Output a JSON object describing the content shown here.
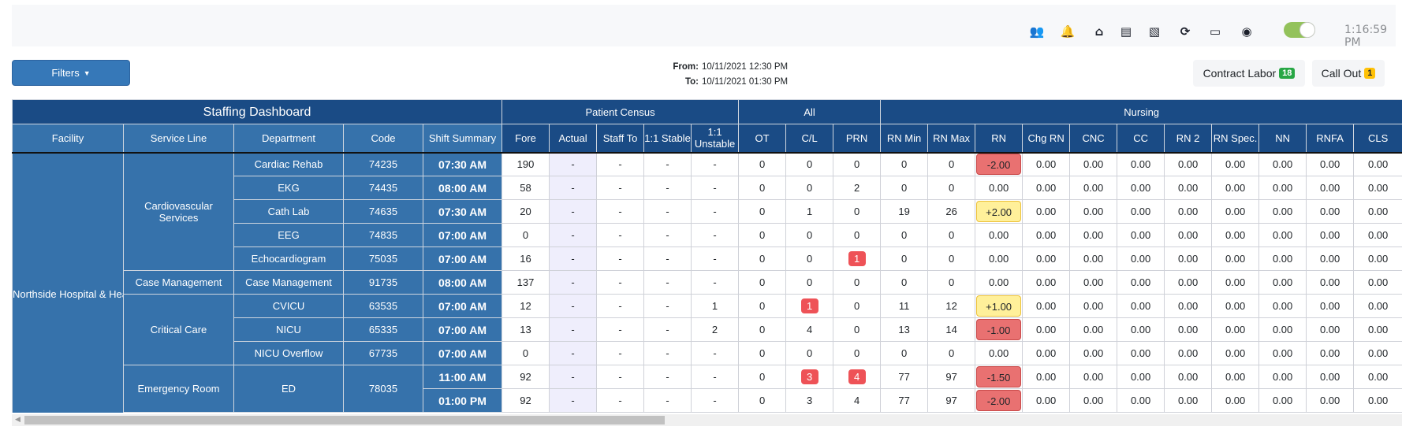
{
  "topbar": {
    "icons": [
      "users-icon",
      "bell-icon",
      "home-icon",
      "file-pdf-icon",
      "file-excel-icon",
      "refresh-icon",
      "id-card-icon",
      "user-circle-icon"
    ],
    "toggle_on": true,
    "toggle_color": "#93c25b",
    "time": "1:16:59 PM"
  },
  "filters": {
    "label": "Filters"
  },
  "range": {
    "from_label": "From:",
    "from": "10/11/2021 12:30 PM",
    "to_label": "To:",
    "to": "10/11/2021 01:30 PM"
  },
  "contract_labor": {
    "label": "Contract Labor",
    "count": "18",
    "color": "#28a745"
  },
  "call_out": {
    "label": "Call Out",
    "count": "1",
    "color": "#ffc107"
  },
  "table": {
    "title": "Staffing Dashboard",
    "groups": {
      "census": "Patient Census",
      "all": "All",
      "nursing": "Nursing"
    },
    "columns": [
      "Facility",
      "Service Line",
      "Department",
      "Code",
      "Shift Summary",
      "Fore",
      "Actual",
      "Staff To",
      "1:1 Stable",
      "1:1 Unstable",
      "OT",
      "C/L",
      "PRN",
      "RN Min",
      "RN Max",
      "RN",
      "Chg RN",
      "CNC",
      "CC",
      "RN 2",
      "RN Spec.",
      "NN",
      "RNFA",
      "CLS"
    ],
    "facility": "Northside Hospital & Heart Institute",
    "service_lines": [
      {
        "name": "Cardiovascular Services",
        "rows": 5
      },
      {
        "name": "Case Management",
        "rows": 1
      },
      {
        "name": "Critical Care",
        "rows": 3
      },
      {
        "name": "Emergency Room",
        "rows": 2
      }
    ],
    "rows": [
      {
        "dept": "Cardiac Rehab",
        "code": "74235",
        "shift": "07:30 AM",
        "fore": "190",
        "actual": "-",
        "staff_to": "-",
        "stable": "-",
        "unstable": "-",
        "ot": "0",
        "cl": "0",
        "prn": "0",
        "rn_min": "0",
        "rn_max": "0",
        "rn": "-2.00",
        "rn_status": "red",
        "cl_flag": false,
        "prn_flag": false
      },
      {
        "dept": "EKG",
        "code": "74435",
        "shift": "08:00 AM",
        "fore": "58",
        "actual": "-",
        "staff_to": "-",
        "stable": "-",
        "unstable": "-",
        "ot": "0",
        "cl": "0",
        "prn": "2",
        "rn_min": "0",
        "rn_max": "0",
        "rn": "0.00",
        "rn_status": "none",
        "cl_flag": false,
        "prn_flag": false
      },
      {
        "dept": "Cath Lab",
        "code": "74635",
        "shift": "07:30 AM",
        "fore": "20",
        "actual": "-",
        "staff_to": "-",
        "stable": "-",
        "unstable": "-",
        "ot": "0",
        "cl": "1",
        "prn": "0",
        "rn_min": "19",
        "rn_max": "26",
        "rn": "+2.00",
        "rn_status": "yellow",
        "cl_flag": false,
        "prn_flag": false
      },
      {
        "dept": "EEG",
        "code": "74835",
        "shift": "07:00 AM",
        "fore": "0",
        "actual": "-",
        "staff_to": "-",
        "stable": "-",
        "unstable": "-",
        "ot": "0",
        "cl": "0",
        "prn": "0",
        "rn_min": "0",
        "rn_max": "0",
        "rn": "0.00",
        "rn_status": "none",
        "cl_flag": false,
        "prn_flag": false
      },
      {
        "dept": "Echocardiogram",
        "code": "75035",
        "shift": "07:00 AM",
        "fore": "16",
        "actual": "-",
        "staff_to": "-",
        "stable": "-",
        "unstable": "-",
        "ot": "0",
        "cl": "0",
        "prn": "1",
        "rn_min": "0",
        "rn_max": "0",
        "rn": "0.00",
        "rn_status": "none",
        "cl_flag": false,
        "prn_flag": true
      },
      {
        "dept": "Case Management",
        "code": "91735",
        "shift": "08:00 AM",
        "fore": "137",
        "actual": "-",
        "staff_to": "-",
        "stable": "-",
        "unstable": "-",
        "ot": "0",
        "cl": "0",
        "prn": "0",
        "rn_min": "0",
        "rn_max": "0",
        "rn": "0.00",
        "rn_status": "none",
        "cl_flag": false,
        "prn_flag": false
      },
      {
        "dept": "CVICU",
        "code": "63535",
        "shift": "07:00 AM",
        "fore": "12",
        "actual": "-",
        "staff_to": "-",
        "stable": "-",
        "unstable": "1",
        "ot": "0",
        "cl": "1",
        "prn": "0",
        "rn_min": "11",
        "rn_max": "12",
        "rn": "+1.00",
        "rn_status": "yellow",
        "cl_flag": true,
        "prn_flag": false
      },
      {
        "dept": "NICU",
        "code": "65335",
        "shift": "07:00 AM",
        "fore": "13",
        "actual": "-",
        "staff_to": "-",
        "stable": "-",
        "unstable": "2",
        "ot": "0",
        "cl": "4",
        "prn": "0",
        "rn_min": "13",
        "rn_max": "14",
        "rn": "-1.00",
        "rn_status": "red",
        "cl_flag": false,
        "prn_flag": false
      },
      {
        "dept": "NICU Overflow",
        "code": "67735",
        "shift": "07:00 AM",
        "fore": "0",
        "actual": "-",
        "staff_to": "-",
        "stable": "-",
        "unstable": "-",
        "ot": "0",
        "cl": "0",
        "prn": "0",
        "rn_min": "0",
        "rn_max": "0",
        "rn": "0.00",
        "rn_status": "none",
        "cl_flag": false,
        "prn_flag": false
      },
      {
        "dept": "ED",
        "code": "78035",
        "shift": "11:00 AM",
        "fore": "92",
        "actual": "-",
        "staff_to": "-",
        "stable": "-",
        "unstable": "-",
        "ot": "0",
        "cl": "3",
        "prn": "4",
        "rn_min": "77",
        "rn_max": "97",
        "rn": "-1.50",
        "rn_status": "red",
        "cl_flag": true,
        "prn_flag": true
      },
      {
        "dept": "ED",
        "code": "78035",
        "shift": "01:00 PM",
        "fore": "92",
        "actual": "-",
        "staff_to": "-",
        "stable": "-",
        "unstable": "-",
        "ot": "0",
        "cl": "3",
        "prn": "4",
        "rn_min": "77",
        "rn_max": "97",
        "rn": "-2.00",
        "rn_status": "red",
        "cl_flag": false,
        "prn_flag": false
      }
    ],
    "other_nursing_value": "0.00",
    "colors": {
      "header_dark": "#1a4b85",
      "header_light": "#3672ab",
      "flag_red": "#ee5257",
      "rn_red": "#e97171",
      "rn_yellow": "#fff09a",
      "actual_bg": "#efeefc"
    }
  }
}
